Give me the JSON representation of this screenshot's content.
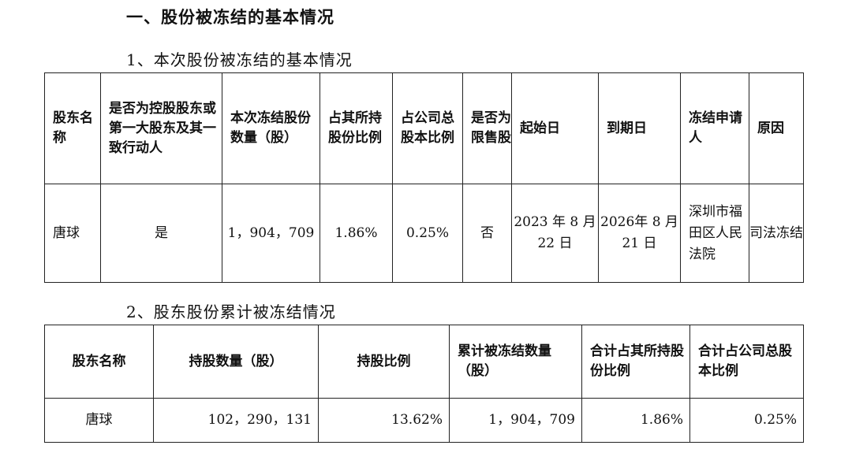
{
  "heading": "一、股份被冻结的基本情况",
  "section1": {
    "title": "1、本次股份被冻结的基本情况",
    "headers": [
      "股东名称",
      "是否为控股股东或第一大股东及其一致行动人",
      "本次冻结股份数量（股）",
      "占其所持股份比例",
      "占公司总股本比例",
      "是否为限售股",
      "起始日",
      "到期日",
      "冻结申请人",
      "原因"
    ],
    "row": [
      "唐球",
      "是",
      "1，904，709",
      "1.86%",
      "0.25%",
      "否",
      "2023 年 8 月 22 日",
      "2026年 8 月 21 日",
      "深圳市福田区人民法院",
      "司法冻结"
    ]
  },
  "section2": {
    "title": "2、股东股份累计被冻结情况",
    "headers": [
      "股东名称",
      "持股数量（股）",
      "持股比例",
      "累计被冻结数量（股）",
      "合计占其所持股份比例",
      "合计占公司总股本比例"
    ],
    "row": [
      "唐球",
      "102，290，131",
      "13.62%",
      "1，904，709",
      "1.86%",
      "0.25%"
    ]
  }
}
